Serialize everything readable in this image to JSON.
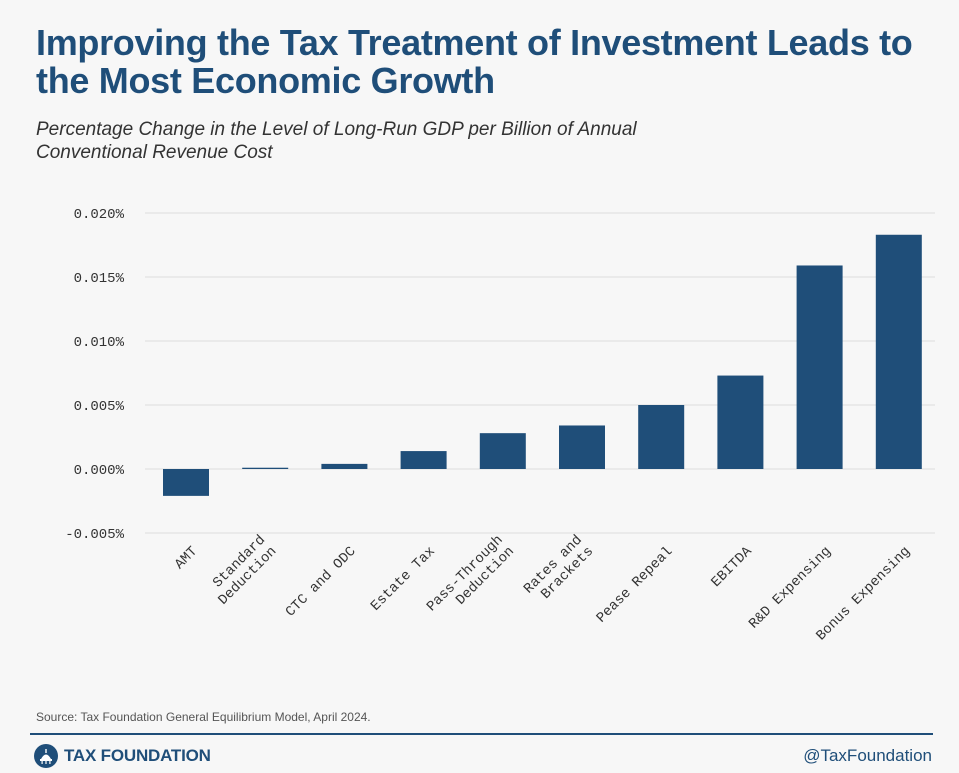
{
  "header": {
    "title": "Improving the Tax Treatment of Investment Leads to the Most Economic Growth",
    "subtitle": "Percentage Change in the Level of Long-Run GDP per Billion of Annual Conventional Revenue Cost"
  },
  "chart_data": {
    "type": "bar",
    "categories": [
      [
        "AMT"
      ],
      [
        "Standard",
        "Deduction"
      ],
      [
        "CTC and ODC"
      ],
      [
        "Estate Tax"
      ],
      [
        "Pass-Through",
        "Deduction"
      ],
      [
        "Rates and",
        "Brackets"
      ],
      [
        "Pease Repeal"
      ],
      [
        "EBITDA"
      ],
      [
        "R&D Expensing"
      ],
      [
        "Bonus Expensing"
      ]
    ],
    "values": [
      -0.0021,
      0.0001,
      0.0004,
      0.0014,
      0.0028,
      0.0034,
      0.005,
      0.0073,
      0.0159,
      0.0183
    ],
    "ylim": [
      -0.005,
      0.02
    ],
    "yticks": [
      0.02,
      0.015,
      0.01,
      0.005,
      0.0,
      -0.005
    ],
    "ytick_labels": [
      "0.020%",
      "0.015%",
      "0.010%",
      "0.005%",
      "0.000%",
      "-0.005%"
    ],
    "grid": true,
    "bar_color": "#1f4e79"
  },
  "footer": {
    "source": "Source: Tax Foundation General Equilibrium Model, April 2024.",
    "brand": "TAX FOUNDATION",
    "handle": "@TaxFoundation"
  },
  "icons": {
    "brand_logo": "capitol-dome-icon"
  }
}
